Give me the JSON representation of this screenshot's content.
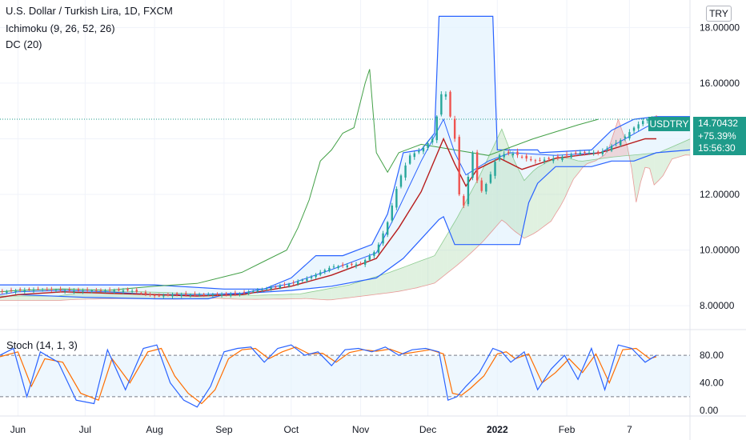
{
  "header": {
    "title": "U.S. Dollar / Turkish Lira, 1D, FXCM",
    "indicators": [
      "Ichimoku (9, 26, 52, 26)",
      "DC (20)"
    ],
    "currency_button": "TRY"
  },
  "last_price": {
    "symbol": "USDTRY",
    "price": "14.70432",
    "change": "+75.39%",
    "countdown": "15:56:30",
    "color": "#1e9b8a"
  },
  "colors": {
    "bull": "#26a69a",
    "bear": "#ef5350",
    "tenkan": "#2962ff",
    "kijun": "#b71c1c",
    "chikou": "#43a047",
    "cloud_green": "#a5d6a7",
    "cloud_red": "#ef9a9a",
    "donchian": "#2962ff",
    "donchian_fill": "#e3f2fd",
    "stoch_k": "#2962ff",
    "stoch_d": "#ff6d00"
  },
  "chart_data": [
    {
      "type": "line",
      "title": "U.S. Dollar / Turkish Lira, 1D, FXCM",
      "ylim": [
        7.2,
        18.7
      ],
      "y_ticks": [
        "18.00000",
        "16.00000",
        "14.00000",
        "12.00000",
        "10.00000",
        "8.00000"
      ],
      "y_tick_values": [
        18,
        16,
        14,
        12,
        10,
        8
      ],
      "x_tick_labels": [
        "Jun",
        "Jul",
        "Aug",
        "Sep",
        "Oct",
        "Nov",
        "Dec",
        "2022",
        "Feb",
        "7"
      ],
      "x_tick_days": [
        0,
        30,
        61,
        92,
        122,
        153,
        183,
        214,
        245,
        273
      ],
      "x_range_days": [
        -8,
        300
      ],
      "series": [
        {
          "role": "price",
          "x_days": [
            -8,
            0,
            10,
            20,
            30,
            40,
            50,
            61,
            70,
            80,
            92,
            100,
            110,
            122,
            130,
            140,
            153,
            160,
            165,
            170,
            175,
            180,
            185,
            190,
            195,
            198,
            200,
            203,
            206,
            210,
            214,
            220,
            230,
            240,
            250,
            260,
            270,
            275,
            280,
            285
          ],
          "values": [
            8.5,
            8.55,
            8.6,
            8.55,
            8.55,
            8.55,
            8.55,
            8.35,
            8.4,
            8.4,
            8.4,
            8.45,
            8.6,
            8.8,
            9.0,
            9.4,
            9.5,
            10.0,
            11.0,
            12.5,
            13.4,
            13.6,
            14.0,
            16.0,
            14.0,
            11.0,
            12.2,
            13.5,
            12.0,
            12.5,
            13.4,
            13.5,
            13.2,
            13.3,
            13.5,
            13.5,
            14.0,
            14.4,
            14.7,
            14.7
          ]
        },
        {
          "role": "ichimoku-tenkan",
          "x_days": [
            -8,
            0,
            20,
            40,
            61,
            80,
            100,
            122,
            140,
            160,
            170,
            180,
            190,
            195,
            200,
            210,
            220,
            240,
            260,
            280,
            285
          ],
          "values": [
            8.4,
            8.5,
            8.55,
            8.5,
            8.4,
            8.4,
            8.45,
            8.8,
            9.3,
            9.9,
            11.5,
            13.2,
            14.7,
            13.5,
            12.7,
            13.2,
            13.5,
            13.4,
            13.5,
            14.4,
            14.6
          ]
        },
        {
          "role": "ichimoku-kijun",
          "x_days": [
            -8,
            0,
            20,
            40,
            61,
            80,
            100,
            122,
            140,
            160,
            170,
            180,
            190,
            195,
            200,
            205,
            215,
            225,
            240,
            260,
            280,
            285
          ],
          "values": [
            8.3,
            8.4,
            8.5,
            8.45,
            8.4,
            8.35,
            8.4,
            8.7,
            9.1,
            9.7,
            10.8,
            12.1,
            14.0,
            13.1,
            12.3,
            12.9,
            13.3,
            12.9,
            13.3,
            13.5,
            14.0,
            14.0
          ]
        },
        {
          "role": "ichimoku-chikou",
          "x_days": [
            -8,
            0,
            20,
            40,
            61,
            80,
            100,
            110,
            120,
            125,
            130,
            135,
            140,
            145,
            150,
            155,
            157,
            160,
            165,
            170,
            180,
            195,
            210,
            230,
            250,
            259
          ],
          "values": [
            8.5,
            8.55,
            8.6,
            8.55,
            8.7,
            8.8,
            9.2,
            9.6,
            10.0,
            10.8,
            11.8,
            13.2,
            13.6,
            14.2,
            14.4,
            16.0,
            16.5,
            13.5,
            12.8,
            13.5,
            13.8,
            13.6,
            13.4,
            14.0,
            14.5,
            14.7
          ]
        },
        {
          "role": "donchian-upper",
          "x_days": [
            -8,
            0,
            40,
            61,
            92,
            110,
            122,
            133,
            145,
            158,
            165,
            172,
            180,
            186,
            188,
            190,
            212,
            214,
            232,
            233,
            256,
            265,
            275,
            285,
            300
          ],
          "values": [
            8.75,
            8.75,
            8.75,
            8.75,
            8.6,
            8.6,
            9.0,
            9.8,
            9.8,
            10.2,
            11.3,
            13.5,
            13.6,
            14.2,
            18.4,
            18.4,
            18.4,
            13.6,
            13.6,
            13.5,
            13.6,
            14.3,
            14.7,
            14.8,
            14.8
          ]
        },
        {
          "role": "donchian-lower",
          "x_days": [
            -8,
            0,
            30,
            61,
            85,
            92,
            122,
            140,
            160,
            172,
            180,
            188,
            190,
            195,
            197,
            199,
            224,
            228,
            232,
            240,
            256,
            265,
            275,
            285,
            300
          ],
          "values": [
            8.3,
            8.4,
            8.3,
            8.25,
            8.25,
            8.4,
            8.55,
            8.7,
            9.0,
            9.7,
            10.4,
            11.1,
            11.2,
            10.2,
            10.2,
            10.2,
            10.2,
            11.7,
            12.4,
            13.0,
            13.0,
            13.2,
            13.2,
            13.5,
            13.6
          ]
        }
      ]
    },
    {
      "type": "line",
      "title": "Stoch (14, 1, 3)",
      "ylim": [
        -8,
        108
      ],
      "y_ticks": [
        "80.00",
        "40.00",
        "0.00"
      ],
      "y_tick_values": [
        80,
        40,
        0
      ],
      "bands": [
        20,
        80
      ],
      "series": [
        {
          "role": "stoch-k",
          "x_days": [
            -8,
            -2,
            4,
            10,
            18,
            26,
            34,
            40,
            48,
            56,
            62,
            68,
            74,
            80,
            86,
            92,
            98,
            104,
            110,
            116,
            122,
            128,
            134,
            140,
            146,
            152,
            158,
            164,
            170,
            176,
            182,
            188,
            192,
            196,
            200,
            206,
            212,
            216,
            220,
            226,
            232,
            238,
            244,
            250,
            256,
            262,
            268,
            274,
            280,
            285
          ],
          "values": [
            80,
            90,
            20,
            85,
            70,
            15,
            10,
            88,
            30,
            90,
            95,
            40,
            15,
            5,
            35,
            85,
            90,
            92,
            70,
            90,
            95,
            80,
            85,
            65,
            88,
            90,
            85,
            92,
            80,
            88,
            90,
            85,
            15,
            20,
            35,
            55,
            90,
            85,
            70,
            85,
            30,
            60,
            80,
            45,
            90,
            30,
            95,
            90,
            70,
            80
          ]
        },
        {
          "role": "stoch-d",
          "x_days": [
            -8,
            0,
            6,
            12,
            20,
            28,
            36,
            42,
            50,
            58,
            64,
            70,
            76,
            82,
            88,
            94,
            100,
            106,
            112,
            118,
            124,
            130,
            136,
            142,
            148,
            154,
            160,
            166,
            172,
            178,
            184,
            190,
            194,
            198,
            202,
            208,
            214,
            218,
            222,
            228,
            234,
            240,
            246,
            252,
            258,
            264,
            270,
            276,
            282,
            285
          ],
          "values": [
            78,
            85,
            35,
            75,
            70,
            25,
            15,
            75,
            40,
            85,
            90,
            50,
            25,
            10,
            30,
            75,
            88,
            90,
            75,
            85,
            92,
            82,
            83,
            70,
            84,
            88,
            86,
            89,
            82,
            85,
            88,
            82,
            25,
            22,
            32,
            50,
            82,
            85,
            75,
            82,
            40,
            55,
            75,
            55,
            82,
            40,
            88,
            90,
            75,
            78
          ]
        }
      ]
    }
  ]
}
